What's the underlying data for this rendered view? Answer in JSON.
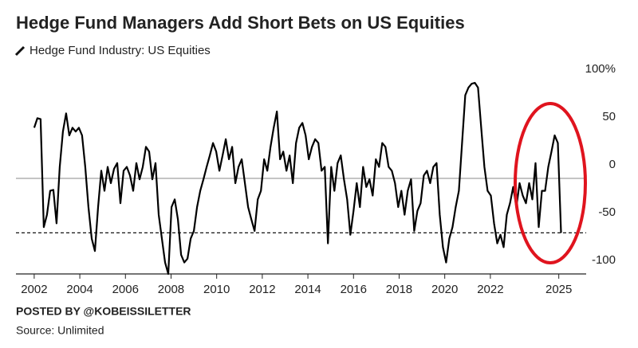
{
  "chart_data": {
    "type": "line",
    "title": "Hedge Fund Managers Add Short Bets on US Equities",
    "series": [
      {
        "name": "Hedge Fund Industry: US Equities",
        "color": "#000000",
        "values": [
          53,
          63,
          62,
          -51,
          -38,
          -13,
          -12,
          -47,
          12,
          49,
          68,
          45,
          53,
          49,
          53,
          45,
          12,
          -30,
          -63,
          -76,
          -30,
          8,
          -13,
          12,
          -5,
          10,
          16,
          -26,
          8,
          12,
          3,
          -13,
          16,
          -1,
          12,
          33,
          28,
          -1,
          16,
          -38,
          -63,
          -88,
          -100,
          -30,
          -22,
          -43,
          -80,
          -88,
          -84,
          -63,
          -55,
          -30,
          -13,
          -1,
          12,
          24,
          37,
          28,
          8,
          24,
          41,
          20,
          33,
          -5,
          12,
          20,
          -5,
          -30,
          -43,
          -55,
          -22,
          -13,
          20,
          8,
          33,
          53,
          70,
          20,
          28,
          8,
          24,
          -5,
          37,
          53,
          58,
          45,
          20,
          33,
          41,
          37,
          8,
          12,
          -68,
          12,
          -13,
          16,
          24,
          -1,
          -22,
          -59,
          -34,
          -5,
          -30,
          12,
          -9,
          -1,
          -18,
          20,
          12,
          37,
          33,
          12,
          8,
          -5,
          -30,
          -13,
          -38,
          -13,
          -1,
          -55,
          -34,
          -26,
          3,
          8,
          -5,
          12,
          16,
          -38,
          -72,
          -88,
          -63,
          -51,
          -30,
          -13,
          37,
          87,
          95,
          99,
          100,
          95,
          53,
          12,
          -13,
          -18,
          -47,
          -68,
          -59,
          -72,
          -38,
          -26,
          -9,
          -30,
          -5,
          -18,
          -26,
          -5,
          -22,
          16,
          -51,
          -13,
          -13,
          12,
          28,
          45,
          37,
          -57
        ]
      }
    ],
    "x": [
      2002.0,
      2002.14,
      2002.28,
      2002.42,
      2002.56,
      2002.7,
      2002.84,
      2002.98,
      2003.12,
      2003.26,
      2003.4,
      2003.54,
      2003.68,
      2003.82,
      2003.96,
      2004.1,
      2004.24,
      2004.38,
      2004.52,
      2004.66,
      2004.8,
      2004.94,
      2005.08,
      2005.22,
      2005.36,
      2005.5,
      2005.64,
      2005.78,
      2005.92,
      2006.06,
      2006.2,
      2006.34,
      2006.48,
      2006.62,
      2006.76,
      2006.9,
      2007.04,
      2007.18,
      2007.32,
      2007.46,
      2007.6,
      2007.74,
      2007.88,
      2008.02,
      2008.16,
      2008.3,
      2008.44,
      2008.58,
      2008.72,
      2008.86,
      2009.0,
      2009.14,
      2009.28,
      2009.42,
      2009.56,
      2009.7,
      2009.84,
      2009.98,
      2010.12,
      2010.26,
      2010.4,
      2010.54,
      2010.68,
      2010.82,
      2010.96,
      2011.1,
      2011.24,
      2011.38,
      2011.52,
      2011.66,
      2011.8,
      2011.94,
      2012.08,
      2012.22,
      2012.36,
      2012.5,
      2012.64,
      2012.78,
      2012.92,
      2013.06,
      2013.2,
      2013.34,
      2013.48,
      2013.62,
      2013.76,
      2013.9,
      2014.04,
      2014.18,
      2014.32,
      2014.46,
      2014.6,
      2014.74,
      2014.88,
      2015.02,
      2015.16,
      2015.3,
      2015.44,
      2015.58,
      2015.72,
      2015.86,
      2016.0,
      2016.14,
      2016.28,
      2016.42,
      2016.56,
      2016.7,
      2016.84,
      2016.98,
      2017.12,
      2017.26,
      2017.4,
      2017.54,
      2017.68,
      2017.82,
      2017.96,
      2018.1,
      2018.24,
      2018.38,
      2018.52,
      2018.66,
      2018.8,
      2018.94,
      2019.08,
      2019.22,
      2019.36,
      2019.5,
      2019.64,
      2019.78,
      2019.92,
      2020.06,
      2020.2,
      2020.34,
      2020.48,
      2020.62,
      2020.76,
      2020.9,
      2021.04,
      2021.18,
      2021.32,
      2021.46,
      2021.6,
      2021.74,
      2021.88,
      2022.02,
      2022.16,
      2022.3,
      2022.44,
      2022.58,
      2022.72,
      2022.86,
      2023.0,
      2023.14,
      2023.28,
      2023.42,
      2023.56,
      2023.7,
      2023.84,
      2023.98,
      2024.12,
      2024.26,
      2024.4,
      2024.54,
      2024.68,
      2024.82,
      2024.96,
      2025.1
    ],
    "xlim": [
      2001.2,
      2026.2
    ],
    "xticks": [
      2002,
      2004,
      2006,
      2008,
      2010,
      2012,
      2014,
      2016,
      2018,
      2020,
      2022,
      2025
    ],
    "ylim": [
      -100,
      100
    ],
    "yticks": [
      {
        "value": 100,
        "label": "100%"
      },
      50,
      0,
      -50,
      -100
    ],
    "reference_line": -57,
    "grid": false,
    "annotation": "POSTED BY @KOBEISSILETTER",
    "source": "Source: Unlimited"
  }
}
